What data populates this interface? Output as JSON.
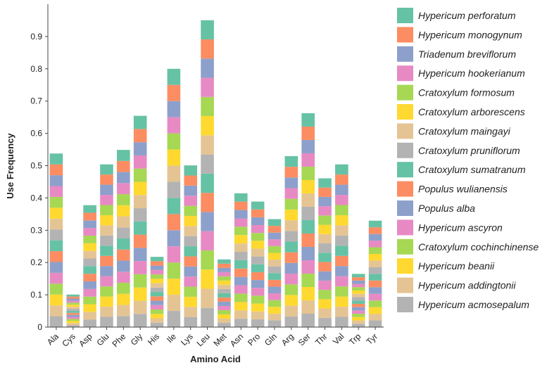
{
  "chart_data": {
    "type": "bar",
    "stacked": true,
    "title": "",
    "xlabel": "Amino Acid",
    "ylabel": "Use Frequency",
    "ylim": [
      0,
      1.0
    ],
    "yticks": [
      0,
      0.1,
      0.2,
      0.3,
      0.4,
      0.5,
      0.6,
      0.7,
      0.8,
      0.9
    ],
    "ytick_labels": [
      "0",
      "0.1",
      "0.2",
      "0.3",
      "0.4",
      "0.5",
      "0.6",
      "0.7",
      "0.8",
      "0.9"
    ],
    "legend_position": "right",
    "categories": [
      "Ala",
      "Cys",
      "Asp",
      "Glu",
      "Phe",
      "Gly",
      "His",
      "Ile",
      "Lys",
      "Leu",
      "Met",
      "Asn",
      "Pro",
      "Gln",
      "Arg",
      "Ser",
      "Thr",
      "Val",
      "Trp",
      "Tyr"
    ],
    "series": [
      {
        "name": "Hypericum acmosepalum",
        "color": "#b3b3b3",
        "values": [
          0.0336,
          0.0063,
          0.0236,
          0.0315,
          0.0343,
          0.0409,
          0.0136,
          0.05,
          0.0313,
          0.0594,
          0.0131,
          0.0259,
          0.0243,
          0.0209,
          0.0331,
          0.0414,
          0.0288,
          0.0315,
          0.0103,
          0.0206
        ]
      },
      {
        "name": "Hypericum addingtonii",
        "color": "#e5c494",
        "values": [
          0.0336,
          0.0063,
          0.0236,
          0.0315,
          0.0343,
          0.0409,
          0.0136,
          0.05,
          0.0313,
          0.0594,
          0.0131,
          0.0259,
          0.0243,
          0.0209,
          0.0331,
          0.0414,
          0.0288,
          0.0315,
          0.0103,
          0.0206
        ]
      },
      {
        "name": "Hypericum beanii",
        "color": "#ffd92f",
        "values": [
          0.0336,
          0.0063,
          0.0236,
          0.0315,
          0.0343,
          0.0409,
          0.0136,
          0.05,
          0.0313,
          0.0594,
          0.0131,
          0.0259,
          0.0243,
          0.0209,
          0.0331,
          0.0414,
          0.0288,
          0.0315,
          0.0103,
          0.0206
        ]
      },
      {
        "name": "Cratoxylum cochinchinense",
        "color": "#a6d854",
        "values": [
          0.0336,
          0.0063,
          0.0236,
          0.0315,
          0.0343,
          0.0409,
          0.0136,
          0.05,
          0.0313,
          0.0594,
          0.0131,
          0.0259,
          0.0243,
          0.0209,
          0.0331,
          0.0414,
          0.0288,
          0.0315,
          0.0103,
          0.0206
        ]
      },
      {
        "name": "Hypericum ascyron",
        "color": "#e78ac3",
        "values": [
          0.0336,
          0.0063,
          0.0236,
          0.0315,
          0.0343,
          0.0409,
          0.0136,
          0.05,
          0.0313,
          0.0594,
          0.0131,
          0.0259,
          0.0243,
          0.0209,
          0.0331,
          0.0414,
          0.0288,
          0.0315,
          0.0103,
          0.0206
        ]
      },
      {
        "name": "Populus alba",
        "color": "#8da0cb",
        "values": [
          0.0336,
          0.0063,
          0.0236,
          0.0315,
          0.0343,
          0.0409,
          0.0136,
          0.05,
          0.0313,
          0.0594,
          0.0131,
          0.0259,
          0.0243,
          0.0209,
          0.0331,
          0.0414,
          0.0288,
          0.0315,
          0.0103,
          0.0206
        ]
      },
      {
        "name": "Populus wulianensis",
        "color": "#fc8d62",
        "values": [
          0.0336,
          0.0063,
          0.0236,
          0.0315,
          0.0343,
          0.0409,
          0.0136,
          0.05,
          0.0313,
          0.0594,
          0.0131,
          0.0259,
          0.0243,
          0.0209,
          0.0331,
          0.0414,
          0.0288,
          0.0315,
          0.0103,
          0.0206
        ]
      },
      {
        "name": "Cratoxylum sumatranum",
        "color": "#66c2a5",
        "values": [
          0.0336,
          0.0063,
          0.0236,
          0.0315,
          0.0343,
          0.0409,
          0.0136,
          0.05,
          0.0313,
          0.0594,
          0.0131,
          0.0259,
          0.0243,
          0.0209,
          0.0331,
          0.0414,
          0.0288,
          0.0315,
          0.0103,
          0.0206
        ]
      },
      {
        "name": "Cratoxylum pruniflorum",
        "color": "#b3b3b3",
        "values": [
          0.0336,
          0.0063,
          0.0236,
          0.0315,
          0.0343,
          0.0409,
          0.0136,
          0.05,
          0.0313,
          0.0594,
          0.0131,
          0.0259,
          0.0243,
          0.0209,
          0.0331,
          0.0414,
          0.0288,
          0.0315,
          0.0103,
          0.0206
        ]
      },
      {
        "name": "Cratoxylum maingayi",
        "color": "#e5c494",
        "values": [
          0.0336,
          0.0063,
          0.0236,
          0.0315,
          0.0343,
          0.0409,
          0.0136,
          0.05,
          0.0313,
          0.0594,
          0.0131,
          0.0259,
          0.0243,
          0.0209,
          0.0331,
          0.0414,
          0.0288,
          0.0315,
          0.0103,
          0.0206
        ]
      },
      {
        "name": "Cratoxylum arborescens",
        "color": "#ffd92f",
        "values": [
          0.0336,
          0.0063,
          0.0236,
          0.0315,
          0.0343,
          0.0409,
          0.0136,
          0.05,
          0.0313,
          0.0594,
          0.0131,
          0.0259,
          0.0243,
          0.0209,
          0.0331,
          0.0414,
          0.0288,
          0.0315,
          0.0103,
          0.0206
        ]
      },
      {
        "name": "Cratoxylum formosum",
        "color": "#a6d854",
        "values": [
          0.0336,
          0.0063,
          0.0236,
          0.0315,
          0.0343,
          0.0409,
          0.0136,
          0.05,
          0.0313,
          0.0594,
          0.0131,
          0.0259,
          0.0243,
          0.0209,
          0.0331,
          0.0414,
          0.0288,
          0.0315,
          0.0103,
          0.0206
        ]
      },
      {
        "name": "Hypericum hookerianum",
        "color": "#e78ac3",
        "values": [
          0.0336,
          0.0063,
          0.0236,
          0.0315,
          0.0343,
          0.0409,
          0.0136,
          0.05,
          0.0313,
          0.0594,
          0.0131,
          0.0259,
          0.0243,
          0.0209,
          0.0331,
          0.0414,
          0.0288,
          0.0315,
          0.0103,
          0.0206
        ]
      },
      {
        "name": "Triadenum breviflorum",
        "color": "#8da0cb",
        "values": [
          0.0336,
          0.0063,
          0.0236,
          0.0315,
          0.0343,
          0.0409,
          0.0136,
          0.05,
          0.0313,
          0.0594,
          0.0131,
          0.0259,
          0.0243,
          0.0209,
          0.0331,
          0.0414,
          0.0288,
          0.0315,
          0.0103,
          0.0206
        ]
      },
      {
        "name": "Hypericum monogynum",
        "color": "#fc8d62",
        "values": [
          0.0336,
          0.0063,
          0.0236,
          0.0315,
          0.0343,
          0.0409,
          0.0136,
          0.05,
          0.0313,
          0.0594,
          0.0131,
          0.0259,
          0.0243,
          0.0209,
          0.0331,
          0.0414,
          0.0288,
          0.0315,
          0.0103,
          0.0206
        ]
      },
      {
        "name": "Hypericum perforatum",
        "color": "#66c2a5",
        "values": [
          0.0336,
          0.0063,
          0.0236,
          0.0315,
          0.0343,
          0.0409,
          0.0136,
          0.05,
          0.0313,
          0.0594,
          0.0131,
          0.0259,
          0.0243,
          0.0209,
          0.0331,
          0.0414,
          0.0288,
          0.0315,
          0.0103,
          0.0206
        ]
      }
    ],
    "legend_order": [
      "Hypericum perforatum",
      "Hypericum monogynum",
      "Triadenum breviflorum",
      "Hypericum hookerianum",
      "Cratoxylum formosum",
      "Cratoxylum arborescens",
      "Cratoxylum maingayi",
      "Cratoxylum pruniflorum",
      "Cratoxylum sumatranum",
      "Populus wulianensis",
      "Populus alba",
      "Hypericum ascyron",
      "Cratoxylum cochinchinense",
      "Hypericum beanii",
      "Hypericum addingtonii",
      "Hypericum acmosepalum"
    ]
  }
}
